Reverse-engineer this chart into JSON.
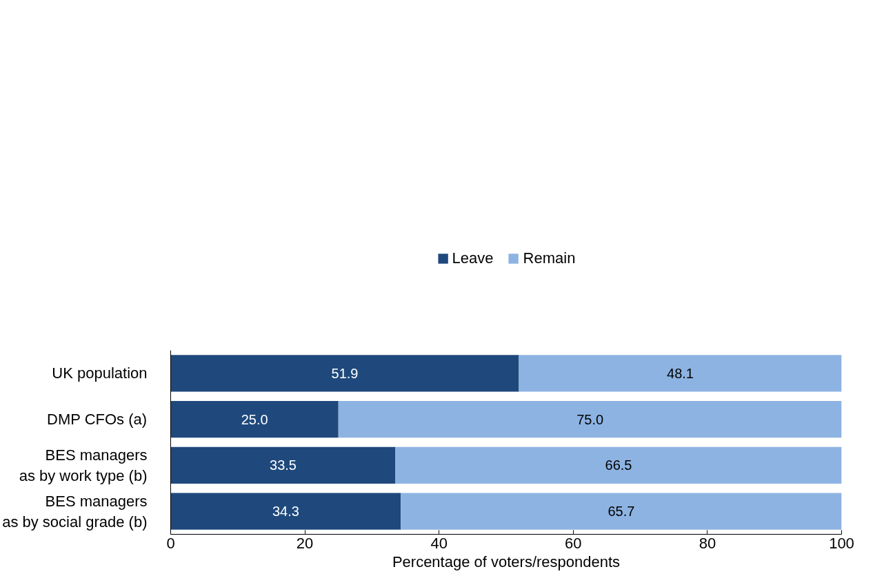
{
  "chart_data": {
    "type": "bar",
    "orientation": "horizontal",
    "stacked": true,
    "categories": [
      "UK population",
      "DMP CFOs (a)",
      "BES managers\nas by work type (b)",
      "BES managers\nas by social grade (b)"
    ],
    "series": [
      {
        "name": "Leave",
        "color": "#1f497d",
        "values": [
          51.9,
          25.0,
          33.5,
          34.3
        ],
        "value_labels": [
          "51.9",
          "25.0",
          "33.5",
          "34.3"
        ]
      },
      {
        "name": "Remain",
        "color": "#8db3e2",
        "values": [
          48.1,
          75.0,
          66.5,
          65.7
        ],
        "value_labels": [
          "48.1",
          "75.0",
          "66.5",
          "65.7"
        ]
      }
    ],
    "xlim": [
      0,
      100
    ],
    "xticks": [
      0,
      20,
      40,
      60,
      80,
      100
    ],
    "xlabel": "Percentage of voters/respondents",
    "legend": "top",
    "grid": false
  }
}
